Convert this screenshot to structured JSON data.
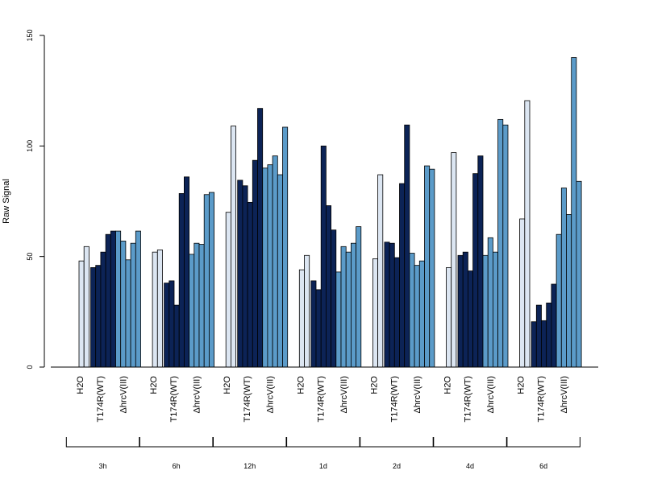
{
  "chart_data": {
    "type": "bar",
    "ylabel": "Raw Signal",
    "ylim": [
      0,
      150
    ],
    "yticks": [
      0,
      50,
      100,
      150
    ],
    "colors": {
      "H2O": "#DCE6F2",
      "T174R(WT)": "#0C2356",
      "hrcV": "#5B9BC9"
    },
    "group_labels": [
      "H2O",
      "T174R(WT)",
      "ΔhrcV(III)"
    ],
    "timepoints": [
      {
        "label": "3h",
        "series": [
          {
            "group": "H2O",
            "values": [
              48,
              54.5
            ]
          },
          {
            "group": "T174R(WT)",
            "values": [
              45,
              46,
              52,
              60,
              61.5
            ]
          },
          {
            "group": "ΔhrcV(III)",
            "values": [
              61.5,
              57,
              48.5,
              56,
              61.5
            ]
          }
        ]
      },
      {
        "label": "6h",
        "series": [
          {
            "group": "H2O",
            "values": [
              52,
              53
            ]
          },
          {
            "group": "T174R(WT)",
            "values": [
              38,
              39,
              28,
              78.5,
              86
            ]
          },
          {
            "group": "ΔhrcV(III)",
            "values": [
              51,
              56,
              55.5,
              78,
              79
            ]
          }
        ]
      },
      {
        "label": "12h",
        "series": [
          {
            "group": "H2O",
            "values": [
              70,
              109
            ]
          },
          {
            "group": "T174R(WT)",
            "values": [
              84.5,
              82,
              74.5,
              93.5,
              117
            ]
          },
          {
            "group": "ΔhrcV(III)",
            "values": [
              90,
              91.5,
              95.5,
              87,
              108.5
            ]
          }
        ]
      },
      {
        "label": "1d",
        "series": [
          {
            "group": "H2O",
            "values": [
              44,
              50.5
            ]
          },
          {
            "group": "T174R(WT)",
            "values": [
              39,
              35,
              100,
              73,
              62
            ]
          },
          {
            "group": "ΔhrcV(III)",
            "values": [
              43,
              54.5,
              52,
              56,
              63.5
            ]
          }
        ]
      },
      {
        "label": "2d",
        "series": [
          {
            "group": "H2O",
            "values": [
              49,
              87
            ]
          },
          {
            "group": "T174R(WT)",
            "values": [
              56.5,
              56,
              49.5,
              83,
              109.5
            ]
          },
          {
            "group": "ΔhrcV(III)",
            "values": [
              51.5,
              46,
              48,
              91,
              89.5
            ]
          }
        ]
      },
      {
        "label": "4d",
        "series": [
          {
            "group": "H2O",
            "values": [
              45,
              97
            ]
          },
          {
            "group": "T174R(WT)",
            "values": [
              50.5,
              52,
              43.5,
              87.5,
              95.5
            ]
          },
          {
            "group": "ΔhrcV(III)",
            "values": [
              50.5,
              58.5,
              52,
              112,
              109.5
            ]
          }
        ]
      },
      {
        "label": "6d",
        "series": [
          {
            "group": "H2O",
            "values": [
              67,
              120.5
            ]
          },
          {
            "group": "T174R(WT)",
            "values": [
              20.5,
              28,
              21,
              29,
              37.5
            ]
          },
          {
            "group": "ΔhrcV(III)",
            "values": [
              60,
              81,
              69,
              140,
              84
            ]
          }
        ]
      }
    ]
  }
}
